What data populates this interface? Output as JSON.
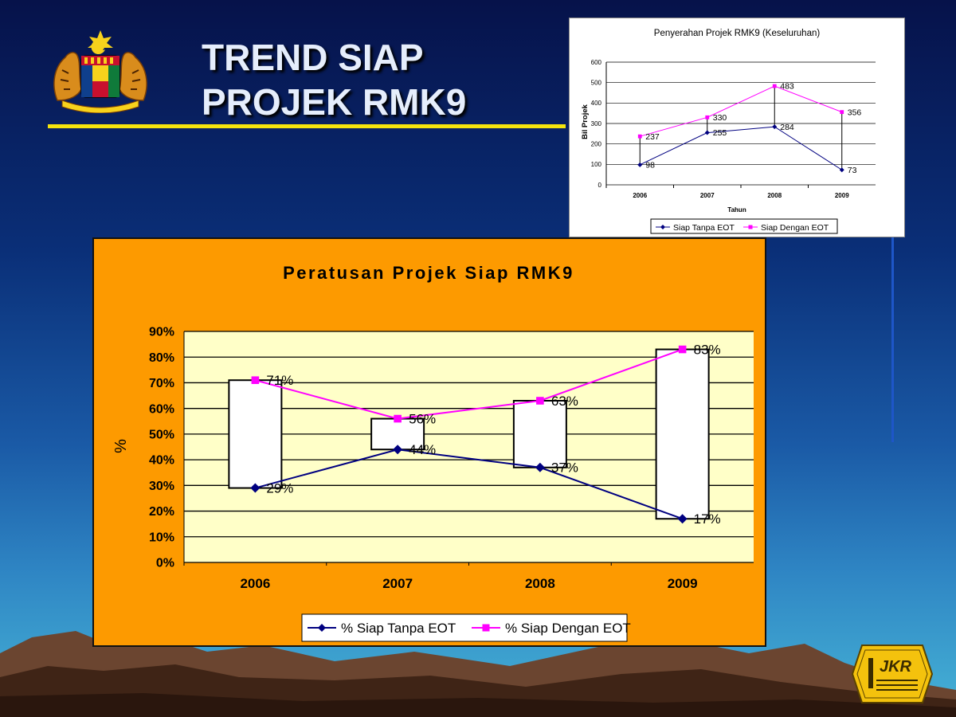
{
  "header": {
    "title_line1": "TREND SIAP",
    "title_line2": "PROJEK RMK9"
  },
  "logo": {
    "text": "JKR"
  },
  "colors": {
    "title_text": "#e6eefc",
    "rule": "#f4e40d",
    "main_chart_bg": "#fd9a00",
    "plot_bg": "#ffffc8",
    "series_tanpa": "#000080",
    "series_dengan": "#ff00ff"
  },
  "chart_data": [
    {
      "type": "line",
      "title": "Penyerahan Projek RMK9 (Keseluruhan)",
      "xlabel": "Tahun",
      "ylabel": "Bil Projek",
      "categories": [
        "2006",
        "2007",
        "2008",
        "2009"
      ],
      "ylim": [
        0,
        600
      ],
      "yticks": [
        0,
        100,
        200,
        300,
        400,
        500,
        600
      ],
      "grid": true,
      "legend": "bottom",
      "series": [
        {
          "name": "Siap Tanpa EOT",
          "values": [
            98,
            255,
            284,
            73
          ],
          "labels": [
            "98",
            "255",
            "284",
            "73"
          ]
        },
        {
          "name": "Siap Dengan EOT",
          "values": [
            237,
            330,
            483,
            356
          ],
          "labels": [
            "237",
            "330",
            "483",
            "356"
          ]
        }
      ]
    },
    {
      "type": "line",
      "title": "Peratusan Projek Siap RMK9",
      "xlabel": "",
      "ylabel": "%",
      "categories": [
        "2006",
        "2007",
        "2008",
        "2009"
      ],
      "ylim": [
        0,
        90
      ],
      "yticks": [
        0,
        10,
        20,
        30,
        40,
        50,
        60,
        70,
        80,
        90
      ],
      "ytick_labels": [
        "0%",
        "10%",
        "20%",
        "30%",
        "40%",
        "50%",
        "60%",
        "70%",
        "80%",
        "90%"
      ],
      "grid": true,
      "legend": "bottom",
      "range_bars": true,
      "series": [
        {
          "name": "% Siap Tanpa EOT",
          "values": [
            29,
            44,
            37,
            17
          ],
          "labels": [
            "29%",
            "44%",
            "37%",
            "17%"
          ]
        },
        {
          "name": "% Siap Dengan EOT",
          "values": [
            71,
            56,
            63,
            83
          ],
          "labels": [
            "71%",
            "56%",
            "63%",
            "83%"
          ]
        }
      ]
    }
  ]
}
